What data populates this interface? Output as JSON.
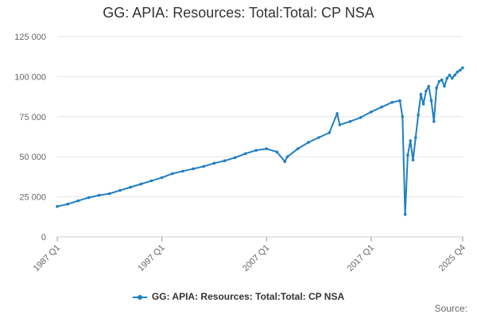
{
  "chart_data": {
    "type": "line",
    "title": "GG: APIA: Resources: Total:Total: CP NSA",
    "xlabel": "",
    "ylabel": "",
    "ylim": [
      0,
      125000
    ],
    "yticks": [
      0,
      25000,
      50000,
      75000,
      100000,
      125000
    ],
    "ytick_labels": [
      "0",
      "25 000",
      "50 000",
      "75 000",
      "100 000",
      "125 000"
    ],
    "xticks": [
      "1987 Q1",
      "1997 Q1",
      "2007 Q1",
      "2017 Q1",
      "2025 Q4"
    ],
    "grid": true,
    "legend_position": "bottom",
    "color": "#1f7fc4",
    "series": [
      {
        "name": "GG: APIA: Resources: Total:Total: CP NSA",
        "x": [
          "1987 Q1",
          "1988 Q1",
          "1989 Q1",
          "1990 Q1",
          "1991 Q1",
          "1992 Q1",
          "1993 Q1",
          "1994 Q1",
          "1995 Q1",
          "1996 Q1",
          "1997 Q1",
          "1998 Q1",
          "1999 Q1",
          "2000 Q1",
          "2001 Q1",
          "2002 Q1",
          "2003 Q1",
          "2004 Q1",
          "2005 Q1",
          "2006 Q1",
          "2007 Q1",
          "2008 Q1",
          "2008 Q4",
          "2009 Q1",
          "2010 Q1",
          "2011 Q1",
          "2012 Q1",
          "2013 Q1",
          "2013 Q4",
          "2014 Q1",
          "2015 Q1",
          "2016 Q1",
          "2017 Q1",
          "2018 Q1",
          "2019 Q1",
          "2019 Q4",
          "2020 Q1",
          "2020 Q2",
          "2020 Q3",
          "2020 Q4",
          "2021 Q1",
          "2021 Q2",
          "2021 Q3",
          "2021 Q4",
          "2022 Q1",
          "2022 Q2",
          "2022 Q3",
          "2022 Q4",
          "2023 Q1",
          "2023 Q2",
          "2023 Q3",
          "2023 Q4",
          "2024 Q1",
          "2024 Q2",
          "2024 Q3",
          "2024 Q4",
          "2025 Q1",
          "2025 Q2",
          "2025 Q3",
          "2025 Q4"
        ],
        "values": [
          19000,
          20500,
          22500,
          24500,
          26000,
          27000,
          29000,
          31000,
          33000,
          35000,
          37000,
          39500,
          41000,
          42500,
          44000,
          46000,
          47500,
          49500,
          52000,
          54000,
          55000,
          53000,
          47000,
          50000,
          55000,
          59000,
          62000,
          65000,
          77000,
          70000,
          72000,
          74500,
          78000,
          81000,
          84000,
          85000,
          75000,
          14000,
          51000,
          60000,
          48000,
          62000,
          76000,
          89000,
          83000,
          91000,
          94000,
          85000,
          72000,
          93000,
          97000,
          98000,
          94000,
          99000,
          101000,
          99000,
          101000,
          103000,
          104000,
          105500
        ]
      }
    ]
  },
  "legend": {
    "label": "GG: APIA: Resources: Total:Total: CP NSA"
  },
  "source": {
    "label": "Source:"
  }
}
